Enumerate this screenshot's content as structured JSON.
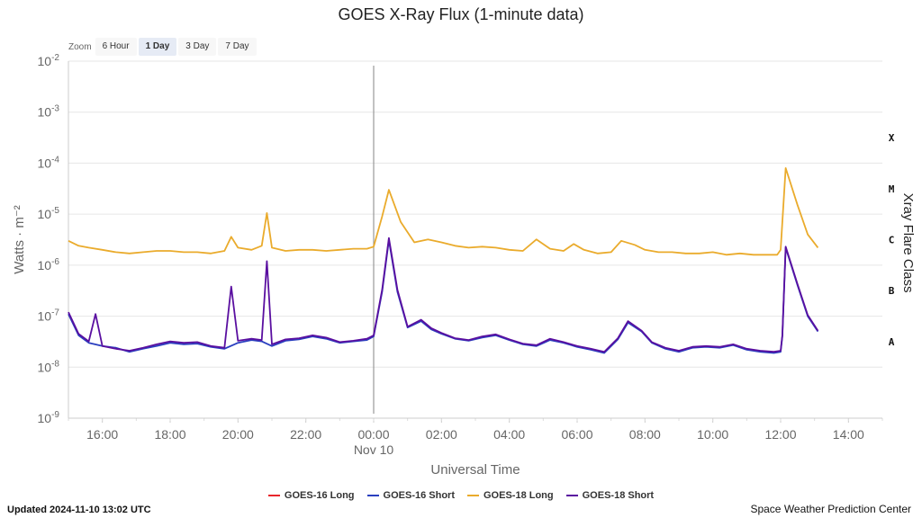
{
  "title": "GOES X-Ray Flux (1-minute data)",
  "zoom": {
    "label": "Zoom",
    "buttons": [
      {
        "label": "6 Hour",
        "active": false
      },
      {
        "label": "1 Day",
        "active": true
      },
      {
        "label": "3 Day",
        "active": false
      },
      {
        "label": "7 Day",
        "active": false
      }
    ]
  },
  "footer": {
    "updated": "Updated 2024-11-10 13:02 UTC",
    "credit": "Space Weather Prediction Center"
  },
  "chart_data": {
    "type": "line",
    "title": "GOES X-Ray Flux (1-minute data)",
    "xlabel": "Universal Time",
    "ylabel": "Watts · m⁻²",
    "ylabel_right": "Xray Flare Class",
    "x_unit": "hour (UTC)",
    "xlim": [
      15,
      15.0,
      15,
      39
    ],
    "x_range": [
      15.0,
      39.0
    ],
    "ylim": [
      1e-09,
      0.01
    ],
    "y_scale": "log",
    "y_ticks": [
      {
        "base": "10",
        "exp": "-2"
      },
      {
        "base": "10",
        "exp": "-3"
      },
      {
        "base": "10",
        "exp": "-4"
      },
      {
        "base": "10",
        "exp": "-5"
      },
      {
        "base": "10",
        "exp": "-6"
      },
      {
        "base": "10",
        "exp": "-7"
      },
      {
        "base": "10",
        "exp": "-8"
      },
      {
        "base": "10",
        "exp": "-9"
      }
    ],
    "x_ticks": [
      {
        "label": "16:00",
        "sub": ""
      },
      {
        "label": "18:00",
        "sub": ""
      },
      {
        "label": "20:00",
        "sub": ""
      },
      {
        "label": "22:00",
        "sub": ""
      },
      {
        "label": "00:00",
        "sub": "Nov 10"
      },
      {
        "label": "02:00",
        "sub": ""
      },
      {
        "label": "04:00",
        "sub": ""
      },
      {
        "label": "06:00",
        "sub": ""
      },
      {
        "label": "08:00",
        "sub": ""
      },
      {
        "label": "10:00",
        "sub": ""
      },
      {
        "label": "12:00",
        "sub": ""
      },
      {
        "label": "14:00",
        "sub": ""
      }
    ],
    "x_tick_hours": [
      16,
      18,
      20,
      22,
      24,
      26,
      28,
      30,
      32,
      34,
      36,
      38
    ],
    "vertical_marker_hour": 24,
    "flare_classes": [
      {
        "label": "X",
        "flux": 0.0001
      },
      {
        "label": "M",
        "flux": 1e-05
      },
      {
        "label": "C",
        "flux": 1e-06
      },
      {
        "label": "B",
        "flux": 1e-07
      },
      {
        "label": "A",
        "flux": 1e-08
      }
    ],
    "grid": true,
    "legend_position": "bottom-center",
    "series": [
      {
        "name": "GOES-16 Long",
        "color": "#e8262b",
        "points": []
      },
      {
        "name": "GOES-16 Short",
        "color": "#2a3fbf",
        "points": [
          [
            15.0,
            1.1e-07
          ],
          [
            15.3,
            4.2e-08
          ],
          [
            15.6,
            3e-08
          ],
          [
            16.0,
            2.6e-08
          ],
          [
            16.4,
            2.4e-08
          ],
          [
            16.8,
            2e-08
          ],
          [
            17.2,
            2.3e-08
          ],
          [
            17.6,
            2.6e-08
          ],
          [
            18.0,
            3e-08
          ],
          [
            18.4,
            2.8e-08
          ],
          [
            18.8,
            2.9e-08
          ],
          [
            19.2,
            2.5e-08
          ],
          [
            19.6,
            2.3e-08
          ],
          [
            20.0,
            3e-08
          ],
          [
            20.4,
            3.4e-08
          ],
          [
            20.7,
            3.2e-08
          ],
          [
            21.0,
            2.6e-08
          ],
          [
            21.4,
            3.3e-08
          ],
          [
            21.8,
            3.5e-08
          ],
          [
            22.2,
            4e-08
          ],
          [
            22.6,
            3.6e-08
          ],
          [
            23.0,
            3e-08
          ],
          [
            23.4,
            3.2e-08
          ],
          [
            23.8,
            3.4e-08
          ],
          [
            24.0,
            4e-08
          ],
          [
            24.25,
            3e-07
          ],
          [
            24.45,
            3.1e-06
          ],
          [
            24.7,
            3e-07
          ],
          [
            25.0,
            6e-08
          ],
          [
            25.4,
            8e-08
          ],
          [
            25.7,
            5.5e-08
          ],
          [
            26.0,
            4.5e-08
          ],
          [
            26.4,
            3.6e-08
          ],
          [
            26.8,
            3.3e-08
          ],
          [
            27.2,
            3.8e-08
          ],
          [
            27.6,
            4.2e-08
          ],
          [
            28.0,
            3.4e-08
          ],
          [
            28.4,
            2.8e-08
          ],
          [
            28.8,
            2.6e-08
          ],
          [
            29.2,
            3.4e-08
          ],
          [
            29.6,
            3e-08
          ],
          [
            30.0,
            2.5e-08
          ],
          [
            30.4,
            2.2e-08
          ],
          [
            30.8,
            1.9e-08
          ],
          [
            31.2,
            3.5e-08
          ],
          [
            31.5,
            7.5e-08
          ],
          [
            31.9,
            5e-08
          ],
          [
            32.2,
            3e-08
          ],
          [
            32.6,
            2.3e-08
          ],
          [
            33.0,
            2e-08
          ],
          [
            33.4,
            2.4e-08
          ],
          [
            33.8,
            2.5e-08
          ],
          [
            34.2,
            2.4e-08
          ],
          [
            34.6,
            2.7e-08
          ],
          [
            35.0,
            2.2e-08
          ],
          [
            35.4,
            2e-08
          ],
          [
            35.8,
            1.9e-08
          ],
          [
            36.0,
            2e-08
          ],
          [
            36.05,
            4e-08
          ],
          [
            36.15,
            2.2e-06
          ],
          [
            36.5,
            4e-07
          ],
          [
            36.8,
            1e-07
          ],
          [
            37.1,
            5e-08
          ]
        ]
      },
      {
        "name": "GOES-18 Long",
        "color": "#eaab2c",
        "points": [
          [
            15.0,
            3e-06
          ],
          [
            15.3,
            2.4e-06
          ],
          [
            15.6,
            2.2e-06
          ],
          [
            16.0,
            2e-06
          ],
          [
            16.4,
            1.8e-06
          ],
          [
            16.8,
            1.7e-06
          ],
          [
            17.2,
            1.8e-06
          ],
          [
            17.6,
            1.9e-06
          ],
          [
            18.0,
            1.9e-06
          ],
          [
            18.4,
            1.8e-06
          ],
          [
            18.8,
            1.8e-06
          ],
          [
            19.2,
            1.7e-06
          ],
          [
            19.6,
            1.9e-06
          ],
          [
            19.8,
            3.6e-06
          ],
          [
            20.0,
            2.2e-06
          ],
          [
            20.4,
            2e-06
          ],
          [
            20.7,
            2.4e-06
          ],
          [
            20.85,
            1.05e-05
          ],
          [
            21.0,
            2.2e-06
          ],
          [
            21.4,
            1.9e-06
          ],
          [
            21.8,
            2e-06
          ],
          [
            22.2,
            2e-06
          ],
          [
            22.6,
            1.9e-06
          ],
          [
            23.0,
            2e-06
          ],
          [
            23.4,
            2.1e-06
          ],
          [
            23.8,
            2.1e-06
          ],
          [
            24.0,
            2.3e-06
          ],
          [
            24.25,
            9e-06
          ],
          [
            24.45,
            3e-05
          ],
          [
            24.8,
            7e-06
          ],
          [
            25.2,
            2.8e-06
          ],
          [
            25.6,
            3.2e-06
          ],
          [
            26.0,
            2.8e-06
          ],
          [
            26.4,
            2.4e-06
          ],
          [
            26.8,
            2.2e-06
          ],
          [
            27.2,
            2.3e-06
          ],
          [
            27.6,
            2.2e-06
          ],
          [
            28.0,
            2e-06
          ],
          [
            28.4,
            1.9e-06
          ],
          [
            28.8,
            3.2e-06
          ],
          [
            29.2,
            2.1e-06
          ],
          [
            29.6,
            1.9e-06
          ],
          [
            29.9,
            2.6e-06
          ],
          [
            30.2,
            2e-06
          ],
          [
            30.6,
            1.7e-06
          ],
          [
            31.0,
            1.8e-06
          ],
          [
            31.3,
            3e-06
          ],
          [
            31.7,
            2.5e-06
          ],
          [
            32.0,
            2e-06
          ],
          [
            32.4,
            1.8e-06
          ],
          [
            32.8,
            1.8e-06
          ],
          [
            33.2,
            1.7e-06
          ],
          [
            33.6,
            1.7e-06
          ],
          [
            34.0,
            1.8e-06
          ],
          [
            34.4,
            1.6e-06
          ],
          [
            34.8,
            1.7e-06
          ],
          [
            35.2,
            1.6e-06
          ],
          [
            35.6,
            1.6e-06
          ],
          [
            35.9,
            1.6e-06
          ],
          [
            36.0,
            2e-06
          ],
          [
            36.15,
            8e-05
          ],
          [
            36.5,
            1.5e-05
          ],
          [
            36.8,
            4e-06
          ],
          [
            37.1,
            2.2e-06
          ]
        ]
      },
      {
        "name": "GOES-18 Short",
        "color": "#5a0fa0",
        "points": [
          [
            15.0,
            1.2e-07
          ],
          [
            15.3,
            4.5e-08
          ],
          [
            15.6,
            3.2e-08
          ],
          [
            15.8,
            1.1e-07
          ],
          [
            16.0,
            2.6e-08
          ],
          [
            16.4,
            2.3e-08
          ],
          [
            16.8,
            2.1e-08
          ],
          [
            17.2,
            2.4e-08
          ],
          [
            17.6,
            2.8e-08
          ],
          [
            18.0,
            3.2e-08
          ],
          [
            18.4,
            3e-08
          ],
          [
            18.8,
            3.1e-08
          ],
          [
            19.2,
            2.6e-08
          ],
          [
            19.6,
            2.4e-08
          ],
          [
            19.8,
            3.8e-07
          ],
          [
            20.0,
            3.3e-08
          ],
          [
            20.4,
            3.6e-08
          ],
          [
            20.7,
            3.4e-08
          ],
          [
            20.85,
            1.2e-06
          ],
          [
            21.0,
            2.8e-08
          ],
          [
            21.4,
            3.5e-08
          ],
          [
            21.8,
            3.7e-08
          ],
          [
            22.2,
            4.2e-08
          ],
          [
            22.6,
            3.8e-08
          ],
          [
            23.0,
            3.1e-08
          ],
          [
            23.4,
            3.3e-08
          ],
          [
            23.8,
            3.6e-08
          ],
          [
            24.0,
            4.2e-08
          ],
          [
            24.25,
            3.3e-07
          ],
          [
            24.45,
            3.4e-06
          ],
          [
            24.7,
            3.3e-07
          ],
          [
            25.0,
            6.2e-08
          ],
          [
            25.4,
            8.5e-08
          ],
          [
            25.7,
            5.8e-08
          ],
          [
            26.0,
            4.7e-08
          ],
          [
            26.4,
            3.7e-08
          ],
          [
            26.8,
            3.4e-08
          ],
          [
            27.2,
            4e-08
          ],
          [
            27.6,
            4.4e-08
          ],
          [
            28.0,
            3.5e-08
          ],
          [
            28.4,
            2.9e-08
          ],
          [
            28.8,
            2.7e-08
          ],
          [
            29.2,
            3.6e-08
          ],
          [
            29.6,
            3.1e-08
          ],
          [
            30.0,
            2.6e-08
          ],
          [
            30.4,
            2.3e-08
          ],
          [
            30.8,
            2e-08
          ],
          [
            31.2,
            3.7e-08
          ],
          [
            31.5,
            8e-08
          ],
          [
            31.9,
            5.2e-08
          ],
          [
            32.2,
            3.1e-08
          ],
          [
            32.6,
            2.4e-08
          ],
          [
            33.0,
            2.1e-08
          ],
          [
            33.4,
            2.5e-08
          ],
          [
            33.8,
            2.6e-08
          ],
          [
            34.2,
            2.5e-08
          ],
          [
            34.6,
            2.8e-08
          ],
          [
            35.0,
            2.3e-08
          ],
          [
            35.4,
            2.1e-08
          ],
          [
            35.8,
            2e-08
          ],
          [
            36.0,
            2.1e-08
          ],
          [
            36.05,
            4.2e-08
          ],
          [
            36.15,
            2.3e-06
          ],
          [
            36.5,
            4.2e-07
          ],
          [
            36.8,
            1.05e-07
          ],
          [
            37.1,
            5.2e-08
          ]
        ]
      }
    ]
  }
}
